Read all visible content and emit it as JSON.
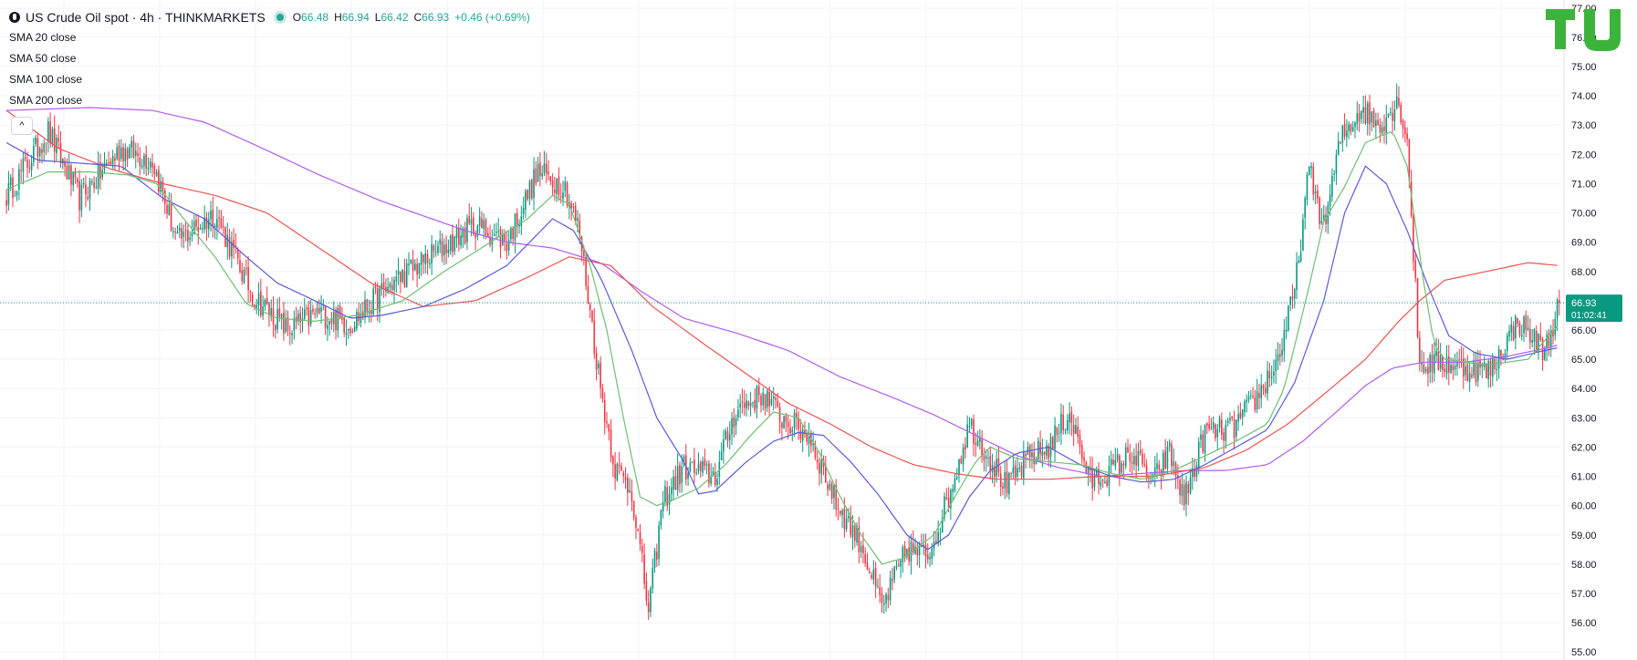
{
  "header": {
    "symbol": "US Crude Oil spot · 4h · THINKMARKETS",
    "open_label": "O",
    "open": "66.48",
    "high_label": "H",
    "high": "66.94",
    "low_label": "L",
    "low": "66.42",
    "close_label": "C",
    "close": "66.93",
    "change": "+0.46 (+0.69%)"
  },
  "indicators": [
    {
      "label": "SMA 20 close",
      "color": "#6fbf73"
    },
    {
      "label": "SMA 50 close",
      "color": "#5b5bdc"
    },
    {
      "label": "SMA 100 close",
      "color": "#ef5350"
    },
    {
      "label": "SMA 200 close",
      "color": "#b15cf2"
    }
  ],
  "price_badge": {
    "price": "66.93",
    "countdown": "01:02:41",
    "color": "#089981"
  },
  "colors": {
    "up": "#089981",
    "down": "#f23645",
    "grid": "#f0f3fa",
    "axis_text": "#131722",
    "logo": "#3cb43c"
  },
  "chart_data": {
    "type": "candlestick",
    "ylim": [
      54.85,
      77.15
    ],
    "y_ticks": [
      "55.00",
      "56.00",
      "57.00",
      "58.00",
      "59.00",
      "60.00",
      "61.00",
      "62.00",
      "63.00",
      "64.00",
      "65.00",
      "66.00",
      "67.00",
      "68.00",
      "69.00",
      "70.00",
      "71.00",
      "72.00",
      "73.00",
      "74.00",
      "75.00",
      "76.00",
      "77.00"
    ],
    "last_price": 66.93,
    "close_anchors": [
      [
        0,
        70.6
      ],
      [
        20,
        72.8
      ],
      [
        35,
        70.5
      ],
      [
        55,
        72.2
      ],
      [
        70,
        71.8
      ],
      [
        82,
        69.0
      ],
      [
        100,
        70.0
      ],
      [
        118,
        67.2
      ],
      [
        135,
        66.0
      ],
      [
        150,
        66.6
      ],
      [
        165,
        66.2
      ],
      [
        185,
        67.6
      ],
      [
        205,
        68.6
      ],
      [
        225,
        69.6
      ],
      [
        240,
        69.0
      ],
      [
        255,
        71.4
      ],
      [
        268,
        70.9
      ],
      [
        275,
        69.3
      ],
      [
        285,
        64.0
      ],
      [
        292,
        61.3
      ],
      [
        300,
        60.5
      ],
      [
        308,
        56.4
      ],
      [
        315,
        60.2
      ],
      [
        325,
        61.3
      ],
      [
        340,
        61.0
      ],
      [
        350,
        63.3
      ],
      [
        363,
        63.8
      ],
      [
        372,
        63.0
      ],
      [
        385,
        62.4
      ],
      [
        398,
        60.1
      ],
      [
        410,
        58.7
      ],
      [
        420,
        56.5
      ],
      [
        432,
        58.5
      ],
      [
        442,
        58.3
      ],
      [
        452,
        60.3
      ],
      [
        462,
        62.8
      ],
      [
        472,
        61.6
      ],
      [
        480,
        60.6
      ],
      [
        490,
        61.6
      ],
      [
        500,
        62.0
      ],
      [
        510,
        63.2
      ],
      [
        520,
        60.8
      ],
      [
        530,
        61.2
      ],
      [
        540,
        61.8
      ],
      [
        550,
        60.8
      ],
      [
        558,
        61.8
      ],
      [
        565,
        60.2
      ],
      [
        575,
        62.5
      ],
      [
        588,
        62.6
      ],
      [
        600,
        63.7
      ],
      [
        610,
        65.0
      ],
      [
        618,
        67.3
      ],
      [
        625,
        71.5
      ],
      [
        632,
        69.5
      ],
      [
        640,
        72.5
      ],
      [
        650,
        73.6
      ],
      [
        658,
        73.0
      ],
      [
        668,
        73.8
      ],
      [
        672,
        72.5
      ],
      [
        678,
        64.8
      ],
      [
        690,
        64.9
      ],
      [
        700,
        64.7
      ],
      [
        712,
        64.6
      ],
      [
        725,
        66.3
      ],
      [
        738,
        65.3
      ],
      [
        745,
        66.9
      ]
    ],
    "sma_20": [
      [
        0,
        70.8
      ],
      [
        20,
        71.4
      ],
      [
        40,
        71.4
      ],
      [
        58,
        71.3
      ],
      [
        72,
        71.0
      ],
      [
        85,
        69.8
      ],
      [
        100,
        68.5
      ],
      [
        115,
        66.9
      ],
      [
        130,
        66.4
      ],
      [
        148,
        66.3
      ],
      [
        168,
        66.5
      ],
      [
        190,
        67.0
      ],
      [
        210,
        68.0
      ],
      [
        230,
        68.9
      ],
      [
        250,
        69.8
      ],
      [
        262,
        70.6
      ],
      [
        270,
        70.3
      ],
      [
        280,
        68.2
      ],
      [
        288,
        66.0
      ],
      [
        296,
        63.0
      ],
      [
        304,
        60.3
      ],
      [
        312,
        60.0
      ],
      [
        320,
        60.2
      ],
      [
        332,
        60.6
      ],
      [
        345,
        61.4
      ],
      [
        357,
        62.4
      ],
      [
        368,
        63.2
      ],
      [
        380,
        63.0
      ],
      [
        390,
        61.8
      ],
      [
        400,
        60.3
      ],
      [
        410,
        59.0
      ],
      [
        420,
        58.0
      ],
      [
        430,
        58.2
      ],
      [
        445,
        59.0
      ],
      [
        455,
        60.3
      ],
      [
        465,
        61.5
      ],
      [
        472,
        62.0
      ],
      [
        485,
        61.6
      ],
      [
        500,
        61.5
      ],
      [
        515,
        61.4
      ],
      [
        530,
        61.1
      ],
      [
        545,
        60.9
      ],
      [
        560,
        61.2
      ],
      [
        575,
        61.7
      ],
      [
        590,
        62.2
      ],
      [
        605,
        62.8
      ],
      [
        613,
        64.0
      ],
      [
        625,
        67.5
      ],
      [
        632,
        69.7
      ],
      [
        642,
        70.9
      ],
      [
        652,
        72.4
      ],
      [
        665,
        72.8
      ],
      [
        672,
        71.6
      ],
      [
        680,
        67.6
      ],
      [
        685,
        65.5
      ],
      [
        690,
        65.0
      ],
      [
        710,
        64.8
      ],
      [
        730,
        65.0
      ],
      [
        740,
        65.8
      ],
      [
        745,
        66.2
      ]
    ],
    "sma_50": [
      [
        0,
        72.4
      ],
      [
        15,
        71.8
      ],
      [
        35,
        71.7
      ],
      [
        55,
        71.6
      ],
      [
        75,
        70.5
      ],
      [
        95,
        69.8
      ],
      [
        115,
        68.5
      ],
      [
        130,
        67.6
      ],
      [
        148,
        67.0
      ],
      [
        165,
        66.4
      ],
      [
        180,
        66.5
      ],
      [
        200,
        66.8
      ],
      [
        220,
        67.4
      ],
      [
        240,
        68.2
      ],
      [
        262,
        69.8
      ],
      [
        272,
        69.4
      ],
      [
        285,
        67.8
      ],
      [
        300,
        65.3
      ],
      [
        312,
        63.0
      ],
      [
        325,
        61.5
      ],
      [
        332,
        60.4
      ],
      [
        340,
        60.5
      ],
      [
        355,
        61.5
      ],
      [
        368,
        62.2
      ],
      [
        380,
        62.5
      ],
      [
        392,
        62.4
      ],
      [
        405,
        61.5
      ],
      [
        418,
        60.4
      ],
      [
        432,
        59.0
      ],
      [
        442,
        58.5
      ],
      [
        452,
        59.0
      ],
      [
        462,
        60.3
      ],
      [
        472,
        61.2
      ],
      [
        485,
        61.8
      ],
      [
        500,
        62.0
      ],
      [
        515,
        61.4
      ],
      [
        530,
        61.0
      ],
      [
        545,
        60.8
      ],
      [
        560,
        60.9
      ],
      [
        575,
        61.4
      ],
      [
        590,
        62.0
      ],
      [
        605,
        62.6
      ],
      [
        618,
        64.2
      ],
      [
        632,
        67.0
      ],
      [
        642,
        70.0
      ],
      [
        652,
        71.6
      ],
      [
        662,
        71.0
      ],
      [
        672,
        69.4
      ],
      [
        682,
        67.5
      ],
      [
        692,
        65.8
      ],
      [
        705,
        65.2
      ],
      [
        720,
        65.0
      ],
      [
        738,
        65.3
      ],
      [
        745,
        65.4
      ]
    ],
    "sma_100": [
      [
        0,
        73.5
      ],
      [
        25,
        72.2
      ],
      [
        50,
        71.5
      ],
      [
        75,
        71.0
      ],
      [
        100,
        70.6
      ],
      [
        125,
        70.0
      ],
      [
        150,
        68.8
      ],
      [
        175,
        67.6
      ],
      [
        200,
        66.8
      ],
      [
        225,
        67.0
      ],
      [
        250,
        67.8
      ],
      [
        270,
        68.5
      ],
      [
        290,
        68.2
      ],
      [
        310,
        66.8
      ],
      [
        335,
        65.5
      ],
      [
        355,
        64.5
      ],
      [
        375,
        63.5
      ],
      [
        395,
        62.8
      ],
      [
        415,
        62.0
      ],
      [
        435,
        61.4
      ],
      [
        455,
        61.1
      ],
      [
        475,
        60.9
      ],
      [
        500,
        60.9
      ],
      [
        525,
        61.0
      ],
      [
        550,
        61.0
      ],
      [
        575,
        61.3
      ],
      [
        595,
        61.9
      ],
      [
        615,
        62.8
      ],
      [
        632,
        63.8
      ],
      [
        652,
        65.0
      ],
      [
        668,
        66.3
      ],
      [
        678,
        67.0
      ],
      [
        690,
        67.7
      ],
      [
        710,
        68.0
      ],
      [
        730,
        68.3
      ],
      [
        745,
        68.2
      ]
    ],
    "sma_200": [
      [
        0,
        73.5
      ],
      [
        40,
        73.6
      ],
      [
        70,
        73.5
      ],
      [
        95,
        73.1
      ],
      [
        120,
        72.3
      ],
      [
        150,
        71.3
      ],
      [
        180,
        70.4
      ],
      [
        200,
        69.9
      ],
      [
        220,
        69.4
      ],
      [
        240,
        69.0
      ],
      [
        262,
        68.8
      ],
      [
        285,
        68.3
      ],
      [
        305,
        67.3
      ],
      [
        325,
        66.4
      ],
      [
        350,
        65.9
      ],
      [
        375,
        65.3
      ],
      [
        400,
        64.4
      ],
      [
        425,
        63.7
      ],
      [
        445,
        63.1
      ],
      [
        465,
        62.4
      ],
      [
        485,
        61.7
      ],
      [
        505,
        61.3
      ],
      [
        525,
        61.0
      ],
      [
        545,
        61.1
      ],
      [
        565,
        61.2
      ],
      [
        585,
        61.2
      ],
      [
        605,
        61.4
      ],
      [
        622,
        62.2
      ],
      [
        638,
        63.2
      ],
      [
        652,
        64.1
      ],
      [
        665,
        64.7
      ],
      [
        680,
        64.9
      ],
      [
        700,
        64.9
      ],
      [
        720,
        65.1
      ],
      [
        740,
        65.4
      ],
      [
        745,
        65.5
      ]
    ]
  }
}
